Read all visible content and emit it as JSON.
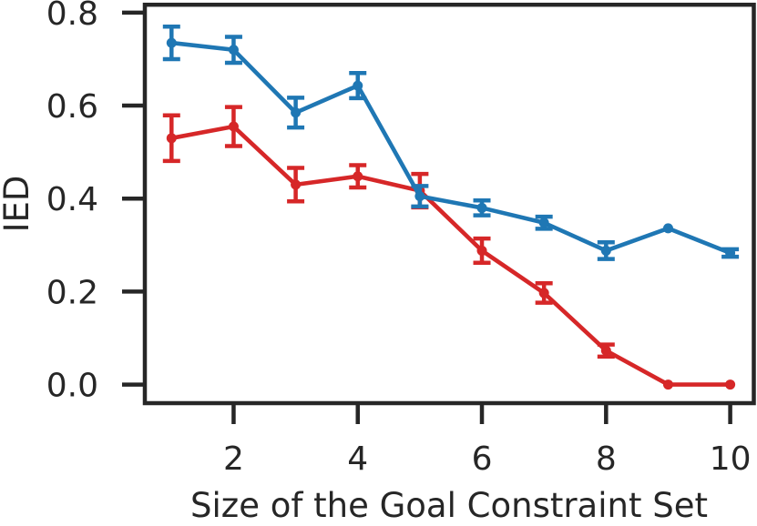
{
  "chart_data": {
    "type": "line",
    "title": "",
    "xlabel": "Size of the Goal Constraint Set",
    "ylabel": "IED",
    "grid": false,
    "legend": "none",
    "xlim": [
      0.57,
      10.38
    ],
    "ylim": [
      -0.04,
      0.817
    ],
    "x_tick_values": [
      2,
      4,
      6,
      8,
      10
    ],
    "x_tick_labels": [
      "2",
      "4",
      "6",
      "8",
      "10"
    ],
    "y_tick_values": [
      0.0,
      0.2,
      0.4,
      0.6,
      0.8
    ],
    "y_tick_labels": [
      "0.0",
      "0.2",
      "0.4",
      "0.6",
      "0.8"
    ],
    "x": [
      1,
      2,
      3,
      4,
      5,
      6,
      7,
      8,
      9,
      10
    ],
    "series": [
      {
        "name": "red-series",
        "color": "#d62728",
        "marker": "circle",
        "values": [
          0.53,
          0.555,
          0.43,
          0.448,
          0.417,
          0.288,
          0.197,
          0.073,
          0.0,
          0.0
        ],
        "errors": [
          0.049,
          0.042,
          0.036,
          0.024,
          0.036,
          0.026,
          0.021,
          0.013,
          0.0,
          0.0
        ]
      },
      {
        "name": "blue-series",
        "color": "#1f77b4",
        "marker": "circle",
        "values": [
          0.735,
          0.72,
          0.585,
          0.643,
          0.405,
          0.38,
          0.348,
          0.288,
          0.336,
          0.283
        ],
        "errors": [
          0.035,
          0.028,
          0.032,
          0.027,
          0.022,
          0.016,
          0.013,
          0.018,
          0.0,
          0.008
        ]
      }
    ],
    "axis_color": "#262626",
    "text_color": "#262626"
  }
}
